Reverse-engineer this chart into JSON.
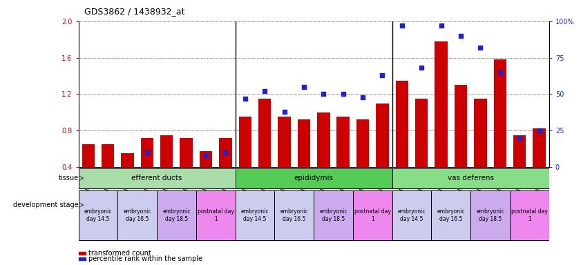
{
  "title": "GDS3862 / 1438932_at",
  "samples": [
    "GSM560923",
    "GSM560924",
    "GSM560925",
    "GSM560926",
    "GSM560927",
    "GSM560928",
    "GSM560929",
    "GSM560930",
    "GSM560931",
    "GSM560932",
    "GSM560933",
    "GSM560934",
    "GSM560935",
    "GSM560936",
    "GSM560937",
    "GSM560938",
    "GSM560939",
    "GSM560940",
    "GSM560941",
    "GSM560942",
    "GSM560943",
    "GSM560944",
    "GSM560945",
    "GSM560946"
  ],
  "bar_values": [
    0.65,
    0.65,
    0.55,
    0.72,
    0.75,
    0.72,
    0.57,
    0.72,
    0.95,
    1.15,
    0.95,
    0.92,
    1.0,
    0.95,
    0.92,
    1.1,
    1.35,
    1.15,
    1.78,
    1.3,
    1.15,
    1.58,
    0.75,
    0.82
  ],
  "dot_values": [
    null,
    null,
    null,
    10,
    null,
    null,
    8,
    10,
    47,
    52,
    38,
    55,
    50,
    50,
    48,
    63,
    97,
    68,
    97,
    90,
    82,
    65,
    20,
    25
  ],
  "ylim_left": [
    0.4,
    2.0
  ],
  "ylim_right": [
    0,
    100
  ],
  "yticks_left": [
    0.4,
    0.8,
    1.2,
    1.6,
    2.0
  ],
  "yticks_right": [
    0,
    25,
    50,
    75,
    100
  ],
  "ytick_labels_right": [
    "0",
    "25",
    "50",
    "75",
    "100%"
  ],
  "bar_color": "#cc0000",
  "dot_color": "#2222cc",
  "tissue_colors": [
    "#aaddaa",
    "#55cc55",
    "#88dd88"
  ],
  "dev_colors": [
    "#ccccee",
    "#ccccee",
    "#ccaaee",
    "#ee88ee"
  ],
  "tissues": [
    {
      "label": "efferent ducts",
      "start": 0,
      "end": 8
    },
    {
      "label": "epididymis",
      "start": 8,
      "end": 16
    },
    {
      "label": "vas deferens",
      "start": 16,
      "end": 24
    }
  ],
  "dev_stages": [
    {
      "label": "embryonic\nday 14.5",
      "start": 0,
      "end": 2,
      "color_idx": 0
    },
    {
      "label": "embryonic\nday 16.5",
      "start": 2,
      "end": 4,
      "color_idx": 0
    },
    {
      "label": "embryonic\nday 18.5",
      "start": 4,
      "end": 6,
      "color_idx": 2
    },
    {
      "label": "postnatal day\n1",
      "start": 6,
      "end": 8,
      "color_idx": 3
    },
    {
      "label": "embryonic\nday 14.5",
      "start": 8,
      "end": 10,
      "color_idx": 0
    },
    {
      "label": "embryonic\nday 16.5",
      "start": 10,
      "end": 12,
      "color_idx": 0
    },
    {
      "label": "embryonic\nday 18.5",
      "start": 12,
      "end": 14,
      "color_idx": 2
    },
    {
      "label": "postnatal day\n1",
      "start": 14,
      "end": 16,
      "color_idx": 3
    },
    {
      "label": "embryonic\nday 14.5",
      "start": 16,
      "end": 18,
      "color_idx": 0
    },
    {
      "label": "embryonic\nday 16.5",
      "start": 18,
      "end": 20,
      "color_idx": 0
    },
    {
      "label": "embryonic\nday 18.5",
      "start": 20,
      "end": 22,
      "color_idx": 2
    },
    {
      "label": "postnatal day\n1",
      "start": 22,
      "end": 24,
      "color_idx": 3
    }
  ],
  "legend_bar_label": "transformed count",
  "legend_dot_label": "percentile rank within the sample",
  "tissue_label": "tissue",
  "dev_stage_label": "development stage",
  "background_color": "#ffffff",
  "plot_bg_color": "#ffffff",
  "separator_color": "#000000",
  "tick_label_color_left": "#cc0000",
  "tick_label_color_right": "#2222cc"
}
